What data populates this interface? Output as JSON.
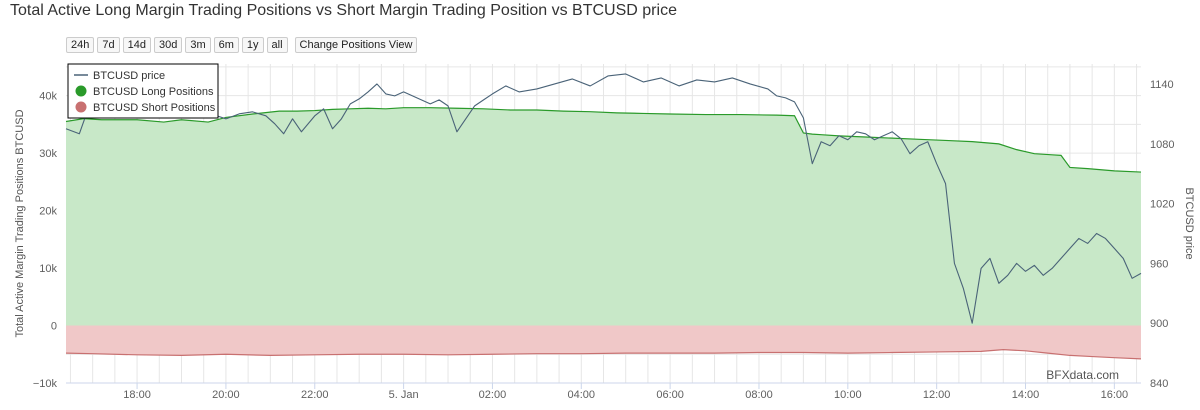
{
  "page": {
    "title": "Total Active Long Margin Trading Positions vs Short Margin Trading Position vs BTCUSD price",
    "credit": "BFXdata.com"
  },
  "toolbar": {
    "range_buttons": [
      "24h",
      "7d",
      "14d",
      "30d",
      "3m",
      "6m",
      "1y",
      "all"
    ],
    "change_view_label": "Change Positions View"
  },
  "chart_data": {
    "type": "area",
    "title": "Total Active Long Margin Trading Positions vs Short Margin Trading Position vs BTCUSD price",
    "x_axis": {
      "ticks": [
        "18:00",
        "20:00",
        "22:00",
        "5. Jan",
        "02:00",
        "04:00",
        "06:00",
        "08:00",
        "10:00",
        "12:00",
        "14:00",
        "16:00"
      ],
      "tick_hours": [
        18,
        20,
        22,
        24,
        26,
        28,
        30,
        32,
        34,
        36,
        38,
        40
      ],
      "range_hours": [
        16.4,
        40.6
      ]
    },
    "y_left": {
      "label": "Total Active Margin Trading Positions BTCUSD",
      "ticks": [
        -10000,
        0,
        10000,
        20000,
        30000,
        40000
      ],
      "tick_labels": [
        "−10k",
        "0",
        "10k",
        "20k",
        "30k",
        "40k"
      ],
      "range": [
        -10000,
        45500
      ]
    },
    "y_right": {
      "label": "BTCUSD price",
      "ticks": [
        840,
        900,
        960,
        1020,
        1080,
        1140
      ],
      "range": [
        840,
        1160
      ]
    },
    "grid": true,
    "legend_position": "top-left",
    "series": [
      {
        "name": "BTCUSD price",
        "axis": "right",
        "kind": "line",
        "color": "#4a6378",
        "x": [
          16.4,
          16.7,
          16.9,
          17.1,
          17.2,
          17.4,
          17.6,
          17.8,
          18.0,
          18.2,
          18.4,
          18.6,
          18.8,
          19.0,
          19.2,
          19.4,
          19.6,
          19.8,
          20.0,
          20.3,
          20.6,
          20.9,
          21.1,
          21.3,
          21.5,
          21.7,
          22.0,
          22.2,
          22.4,
          22.6,
          22.8,
          23.0,
          23.2,
          23.4,
          23.6,
          23.8,
          24.0,
          24.3,
          24.6,
          24.8,
          25.0,
          25.2,
          25.4,
          25.6,
          25.8,
          26.0,
          26.3,
          26.6,
          27.0,
          27.4,
          27.8,
          28.2,
          28.6,
          29.0,
          29.4,
          29.8,
          30.2,
          30.6,
          31.0,
          31.4,
          31.8,
          32.2,
          32.4,
          32.6,
          32.8,
          33.0,
          33.2,
          33.4,
          33.6,
          33.8,
          34.0,
          34.2,
          34.4,
          34.6,
          34.8,
          35.0,
          35.2,
          35.4,
          35.6,
          35.8,
          36.0,
          36.2,
          36.3,
          36.4,
          36.6,
          36.8,
          37.0,
          37.2,
          37.4,
          37.6,
          37.8,
          38.0,
          38.2,
          38.4,
          38.6,
          38.8,
          39.0,
          39.2,
          39.4,
          39.6,
          39.8,
          40.0,
          40.2,
          40.4,
          40.6
        ],
        "y": [
          1095,
          1090,
          1115,
          1125,
          1110,
          1118,
          1122,
          1120,
          1128,
          1125,
          1130,
          1124,
          1127,
          1122,
          1118,
          1112,
          1115,
          1108,
          1105,
          1110,
          1112,
          1108,
          1100,
          1090,
          1105,
          1092,
          1108,
          1115,
          1095,
          1105,
          1120,
          1125,
          1132,
          1140,
          1130,
          1128,
          1132,
          1126,
          1120,
          1124,
          1118,
          1092,
          1105,
          1118,
          1124,
          1130,
          1138,
          1132,
          1135,
          1140,
          1145,
          1138,
          1148,
          1150,
          1142,
          1146,
          1138,
          1144,
          1142,
          1146,
          1140,
          1135,
          1128,
          1126,
          1122,
          1106,
          1060,
          1082,
          1078,
          1088,
          1084,
          1092,
          1090,
          1084,
          1088,
          1092,
          1085,
          1070,
          1078,
          1082,
          1060,
          1040,
          1000,
          960,
          935,
          900,
          955,
          965,
          940,
          948,
          960,
          952,
          958,
          948,
          955,
          965,
          975,
          985,
          980,
          990,
          985,
          975,
          965,
          945,
          950
        ]
      },
      {
        "name": "BTCUSD Long Positions",
        "axis": "left",
        "kind": "area",
        "color": "#2a9a2a",
        "fill": "#c8e8c8",
        "x": [
          16.4,
          16.8,
          17.2,
          18.0,
          18.6,
          19.0,
          19.6,
          20.0,
          20.6,
          21.2,
          21.6,
          22.0,
          22.4,
          22.8,
          23.2,
          23.6,
          24.0,
          24.6,
          25.2,
          25.8,
          26.4,
          27.0,
          27.6,
          28.2,
          28.8,
          29.4,
          30.0,
          30.8,
          31.6,
          32.4,
          32.8,
          33.0,
          33.2,
          33.4,
          33.8,
          34.4,
          35.0,
          35.6,
          36.2,
          36.8,
          37.4,
          37.8,
          38.2,
          38.6,
          38.8,
          39.0,
          39.4,
          40.0,
          40.6
        ],
        "y": [
          35500,
          36000,
          35800,
          35800,
          35400,
          35800,
          35400,
          36200,
          36800,
          37300,
          37300,
          37400,
          37600,
          37700,
          37800,
          37700,
          37900,
          37900,
          37800,
          37700,
          37500,
          37500,
          37300,
          37200,
          37000,
          36900,
          36800,
          36700,
          36700,
          36600,
          36500,
          33500,
          33300,
          33200,
          33000,
          32800,
          32600,
          32400,
          32200,
          32000,
          31600,
          30600,
          29900,
          29700,
          29600,
          27500,
          27300,
          26900,
          26700
        ]
      },
      {
        "name": "BTCUSD Short Positions",
        "axis": "left",
        "kind": "area",
        "color": "#c87070",
        "fill": "#f0c8c8",
        "x": [
          16.4,
          17.0,
          18.0,
          19.0,
          20.0,
          21.0,
          22.0,
          23.0,
          24.0,
          25.0,
          26.0,
          27.0,
          28.0,
          29.0,
          30.0,
          31.0,
          32.0,
          33.0,
          34.0,
          35.0,
          36.0,
          37.0,
          37.5,
          38.0,
          38.5,
          39.0,
          39.5,
          40.0,
          40.6
        ],
        "y": [
          -4800,
          -4900,
          -5100,
          -5200,
          -5000,
          -5200,
          -5100,
          -5000,
          -5000,
          -5100,
          -5000,
          -4900,
          -4900,
          -4800,
          -4800,
          -4800,
          -4700,
          -4700,
          -4800,
          -4700,
          -4600,
          -4500,
          -4200,
          -4400,
          -4800,
          -5200,
          -5400,
          -5600,
          -5800
        ]
      }
    ]
  }
}
